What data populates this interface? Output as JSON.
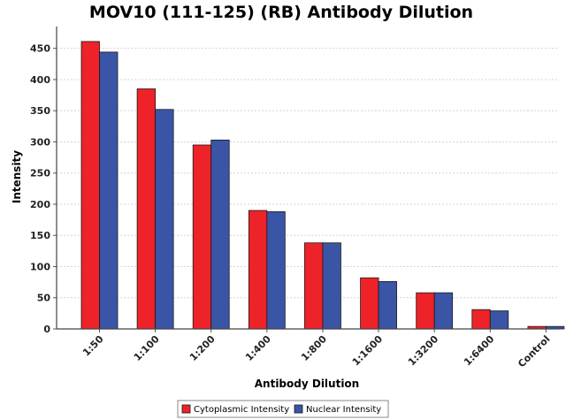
{
  "chart_data": {
    "type": "bar",
    "title": "MOV10 (111-125) (RB) Antibody Dilution",
    "xlabel": "Antibody Dilution",
    "ylabel": "Intensity",
    "categories": [
      "1:50",
      "1:100",
      "1:200",
      "1:400",
      "1:800",
      "1:1600",
      "1:3200",
      "1:6400",
      "Control"
    ],
    "series": [
      {
        "name": "Cytoplasmic Intensity",
        "color": "#ee2229",
        "values": [
          461,
          385,
          295,
          190,
          138,
          82,
          58,
          31,
          4
        ]
      },
      {
        "name": "Nuclear Intensity",
        "color": "#3a55a6",
        "values": [
          444,
          352,
          303,
          188,
          138,
          76,
          58,
          29,
          4
        ]
      }
    ],
    "ylim": [
      0,
      485
    ],
    "yticks": [
      0,
      50,
      100,
      150,
      200,
      250,
      300,
      350,
      400,
      450
    ],
    "grid": true,
    "legend_position": "bottom-center"
  }
}
